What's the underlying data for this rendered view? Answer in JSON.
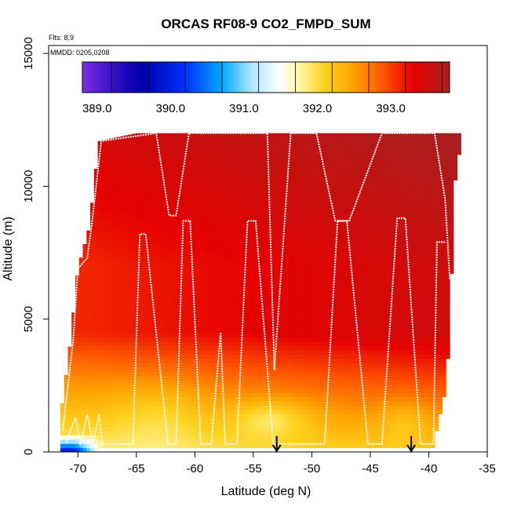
{
  "chart_data": {
    "type": "heatmap",
    "title": "ORCAS RF08-9 CO2_FMPD_SUM",
    "flights_note": "Flts: 8,9",
    "dates_note": "MMDD: 0205,0208",
    "xlabel": "Latitude (deg N)",
    "ylabel": "Altitude (m)",
    "xlim": [
      -72.5,
      -35
    ],
    "ylim": [
      0,
      15300
    ],
    "x_ticks": [
      -70,
      -65,
      -60,
      -55,
      -50,
      -45,
      -40,
      -35
    ],
    "x_tick_labels": [
      "-70",
      "-65",
      "-60",
      "-55",
      "-50",
      "-45",
      "-40",
      "-35"
    ],
    "y_ticks": [
      0,
      5000,
      10000,
      15000
    ],
    "y_tick_labels": [
      "0",
      "5000",
      "10000",
      "15000"
    ],
    "grid": false,
    "colorbar": {
      "placement": "top-inside",
      "range": [
        388.8,
        393.8
      ],
      "tick_values": [
        389.0,
        390.0,
        391.0,
        392.0,
        393.0
      ],
      "tick_labels": [
        "389.0",
        "390.0",
        "391.0",
        "392.0",
        "393.0"
      ],
      "color_stops": [
        {
          "value": 388.8,
          "color": "#7b2fe8"
        },
        {
          "value": 389.2,
          "color": "#3a0fc8"
        },
        {
          "value": 389.6,
          "color": "#0000a8"
        },
        {
          "value": 390.2,
          "color": "#0030ff"
        },
        {
          "value": 390.7,
          "color": "#00a8ff"
        },
        {
          "value": 391.1,
          "color": "#aee6ff"
        },
        {
          "value": 391.5,
          "color": "#ffffff"
        },
        {
          "value": 391.75,
          "color": "#fff8a8"
        },
        {
          "value": 392.1,
          "color": "#ffd21e"
        },
        {
          "value": 392.5,
          "color": "#ffa000"
        },
        {
          "value": 392.9,
          "color": "#ff5500"
        },
        {
          "value": 393.3,
          "color": "#e50000"
        },
        {
          "value": 393.8,
          "color": "#a81f1f"
        }
      ]
    },
    "field": {
      "lat_range": [
        -71.5,
        -37.4
      ],
      "alt_range": [
        0,
        12000
      ],
      "top_edge": [
        [
          -71.5,
          1300
        ],
        [
          -70.6,
          4300
        ],
        [
          -70.0,
          6900
        ],
        [
          -69.0,
          8500
        ],
        [
          -68.2,
          11700
        ],
        [
          -65.0,
          12000
        ],
        [
          -40.0,
          12000
        ],
        [
          -37.2,
          12000
        ]
      ],
      "right_edge": [
        [
          0,
          -39.7
        ],
        [
          2500,
          -38.5
        ],
        [
          5000,
          -38.2
        ],
        [
          10000,
          -37.8
        ],
        [
          12000,
          -37.2
        ]
      ],
      "surface_min_alt": 100
    },
    "flight_tracks": [
      {
        "name": "RF08",
        "points": [
          [
            -71.3,
            800
          ],
          [
            -70.4,
            4200
          ],
          [
            -70.0,
            6900
          ],
          [
            -69.2,
            7300
          ],
          [
            -68.8,
            8600
          ],
          [
            -68.0,
            11700
          ],
          [
            -63.3,
            12000
          ],
          [
            -62.2,
            8900
          ],
          [
            -61.6,
            8900
          ],
          [
            -60.5,
            12000
          ],
          [
            -53.8,
            12000
          ],
          [
            -53.2,
            3100
          ],
          [
            -51.8,
            12000
          ],
          [
            -49.6,
            12000
          ],
          [
            -48.0,
            8700
          ],
          [
            -46.8,
            8700
          ],
          [
            -44.0,
            12000
          ],
          [
            -39.5,
            12000
          ],
          [
            -38.6,
            9500
          ],
          [
            -38.2,
            6500
          ]
        ]
      },
      {
        "name": "RF09",
        "points": [
          [
            -71.0,
            350
          ],
          [
            -70.2,
            1300
          ],
          [
            -69.8,
            250
          ],
          [
            -69.2,
            1400
          ],
          [
            -68.7,
            300
          ],
          [
            -68.2,
            1400
          ],
          [
            -67.9,
            300
          ],
          [
            -65.3,
            300
          ],
          [
            -64.7,
            8200
          ],
          [
            -64.2,
            8200
          ],
          [
            -62.3,
            300
          ],
          [
            -61.6,
            300
          ],
          [
            -61.0,
            8700
          ],
          [
            -60.4,
            8700
          ],
          [
            -59.5,
            300
          ],
          [
            -58.6,
            300
          ],
          [
            -57.8,
            4500
          ],
          [
            -57.4,
            300
          ],
          [
            -56.4,
            300
          ],
          [
            -55.5,
            8700
          ],
          [
            -54.8,
            8700
          ],
          [
            -53.3,
            300
          ],
          [
            -48.9,
            300
          ],
          [
            -47.8,
            8700
          ],
          [
            -47.0,
            8700
          ],
          [
            -45.2,
            300
          ],
          [
            -44.0,
            300
          ],
          [
            -42.7,
            8800
          ],
          [
            -42.0,
            8800
          ],
          [
            -40.7,
            300
          ],
          [
            -39.6,
            300
          ],
          [
            -39.3,
            7900
          ],
          [
            -38.6,
            7900
          ]
        ]
      }
    ],
    "markers": [
      {
        "type": "arrow-down",
        "x": -53,
        "y_top": 600,
        "y_tip": 0
      },
      {
        "type": "arrow-down",
        "x": -41.5,
        "y_top": 600,
        "y_tip": 0
      }
    ]
  }
}
